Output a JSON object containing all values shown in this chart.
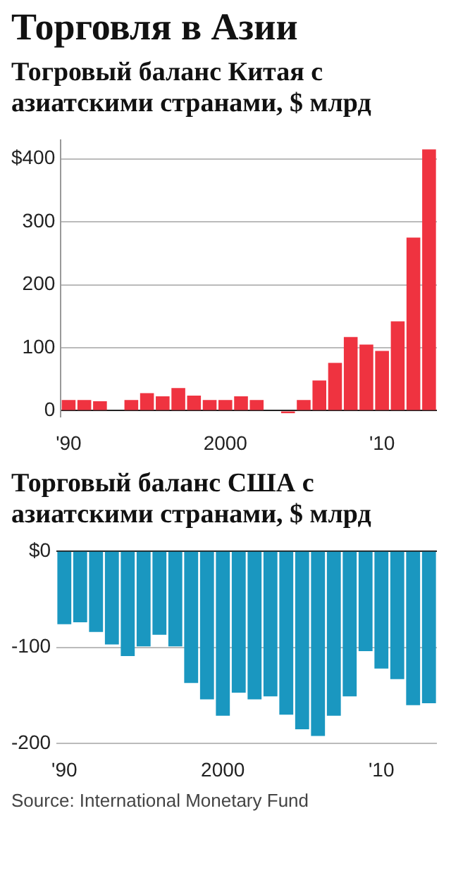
{
  "chart_data": [
    {
      "type": "bar",
      "title": "Торговля в Азии",
      "subtitle": "Тогровый баланс Китая с азиатскими странами, $ млрд",
      "categories": [
        "'90",
        null,
        null,
        null,
        null,
        null,
        null,
        null,
        null,
        null,
        "2000",
        null,
        null,
        null,
        null,
        null,
        null,
        null,
        null,
        null,
        "'10",
        null,
        null,
        null
      ],
      "values": [
        17,
        17,
        15,
        0,
        17,
        28,
        23,
        36,
        24,
        17,
        17,
        23,
        17,
        0,
        -4,
        17,
        48,
        76,
        117,
        105,
        95,
        142,
        275,
        415
      ],
      "color": "#ef3340",
      "ylim": [
        -10,
        430
      ],
      "yticks": [
        0,
        100,
        200,
        300,
        {
          "value": 400,
          "label": "$400"
        }
      ],
      "grid": "y"
    },
    {
      "type": "bar",
      "title": "Торговый баланс США с азиатскими странами, $ млрд",
      "categories": [
        "'90",
        null,
        null,
        null,
        null,
        null,
        null,
        null,
        null,
        null,
        "2000",
        null,
        null,
        null,
        null,
        null,
        null,
        null,
        null,
        null,
        "'10",
        null,
        null,
        null
      ],
      "values": [
        -76,
        -74,
        -84,
        -97,
        -109,
        -99,
        -87,
        -99,
        -137,
        -154,
        -171,
        -147,
        -154,
        -151,
        -170,
        -185,
        -192,
        -171,
        -151,
        -104,
        -122,
        -133,
        -160,
        -158
      ],
      "color": "#1a97c0",
      "ylim": [
        -200,
        0
      ],
      "yticks": [
        {
          "value": 0,
          "label": "$0"
        },
        -100,
        -200
      ],
      "grid": "y",
      "annotations": [
        "Source: International Monetary Fund"
      ]
    }
  ]
}
